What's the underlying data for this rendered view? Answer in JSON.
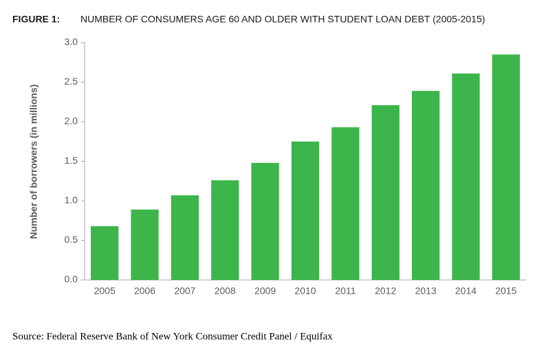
{
  "figure_label": "FIGURE 1:",
  "source": "Source: Federal Reserve Bank of New York Consumer Credit Panel / Equifax",
  "chart_data": {
    "type": "bar",
    "title": "NUMBER OF CONSUMERS AGE 60 AND OLDER WITH STUDENT LOAN DEBT (2005-2015)",
    "y_label": "Number of borrowers (in millions)",
    "categories": [
      "2005",
      "2006",
      "2007",
      "2008",
      "2009",
      "2010",
      "2011",
      "2012",
      "2013",
      "2014",
      "2015"
    ],
    "values": [
      0.68,
      0.89,
      1.07,
      1.26,
      1.48,
      1.75,
      1.93,
      2.21,
      2.39,
      2.61,
      2.85
    ],
    "color": "#3cb54a",
    "ylim": [
      0,
      3
    ],
    "yticks": [
      {
        "value": 0,
        "label": "0.0"
      },
      0.5,
      {
        "value": 1,
        "label": "1.0"
      },
      1.5,
      {
        "value": 2,
        "label": "2.0"
      },
      2.5,
      {
        "value": 3,
        "label": "3.0"
      }
    ],
    "grid": false
  }
}
